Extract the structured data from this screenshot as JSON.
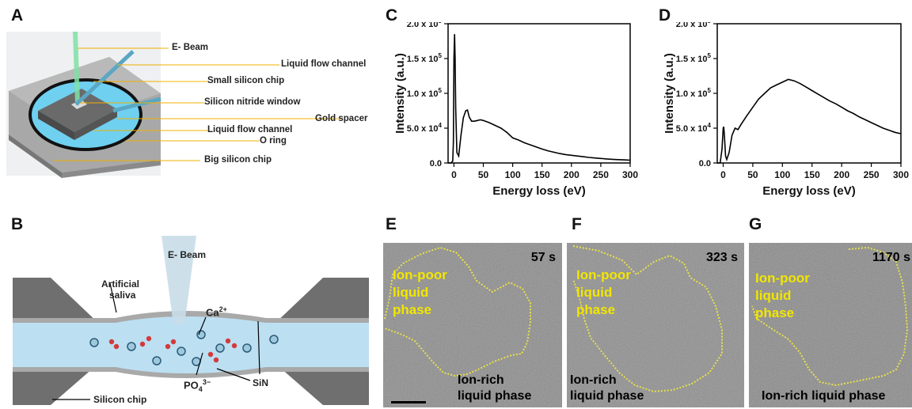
{
  "panels": {
    "A": "A",
    "B": "B",
    "C": "C",
    "D": "D",
    "E": "E",
    "F": "F",
    "G": "G"
  },
  "panelA": {
    "labels": [
      "E- Beam",
      "Liquid flow channel",
      "Small silicon chip",
      "Silicon nitride window",
      "Gold spacer",
      "Liquid flow channel",
      "O ring",
      "Big silicon chip"
    ]
  },
  "panelB": {
    "ebeam": "E- Beam",
    "artificial": "Artificial",
    "saliva": "saliva",
    "ca": "Ca",
    "ca_sup": "2+",
    "po": "PO",
    "po_sub": "4",
    "po_sup": "3−",
    "sin": "SiN",
    "silicon": "Silicon chip"
  },
  "panelE": {
    "time": "57 s",
    "poor1": "Ion-poor",
    "poor2": "liquid",
    "poor3": "phase",
    "rich1": "Ion-rich",
    "rich2": "liquid phase"
  },
  "panelF": {
    "time": "323 s",
    "poor1": "Ion-poor",
    "poor2": "liquid",
    "poor3": "phase",
    "rich1": "Ion-rich",
    "rich2": "liquid phase"
  },
  "panelG": {
    "time": "1170 s",
    "poor1": "Ion-poor",
    "poor2": "liquid",
    "poor3": "phase",
    "rich1": "Ion-rich liquid phase"
  },
  "chart_data": [
    {
      "type": "line",
      "panel": "C",
      "xlabel": "Energy loss (eV)",
      "ylabel": "Intensity (a.u.)",
      "xlim": [
        -10,
        300
      ],
      "ylim": [
        0,
        200000
      ],
      "xticks": [
        "0",
        "50",
        "100",
        "150",
        "200",
        "250",
        "300"
      ],
      "yticks": [
        "0.0",
        "5.0 x 10",
        "1.0 x 10",
        "1.5 x 10",
        "2.0 x 10"
      ],
      "ytick_exp": [
        "",
        "4",
        "5",
        "5",
        "5"
      ],
      "x": [
        -10,
        -5,
        -2,
        -1,
        0,
        1,
        2,
        3,
        5,
        8,
        12,
        16,
        20,
        23,
        26,
        30,
        35,
        40,
        45,
        50,
        60,
        70,
        80,
        90,
        100,
        110,
        120,
        130,
        140,
        150,
        160,
        170,
        180,
        190,
        200,
        210,
        220,
        230,
        240,
        250,
        260,
        270,
        280,
        290,
        300
      ],
      "y": [
        0,
        0,
        3000,
        30000,
        150000,
        185000,
        150000,
        80000,
        15000,
        10000,
        40000,
        65000,
        75000,
        76000,
        66000,
        60000,
        60000,
        61000,
        62000,
        61000,
        58000,
        54000,
        50000,
        44000,
        36000,
        33000,
        29000,
        26000,
        23000,
        20000,
        17500,
        15500,
        13500,
        12000,
        11000,
        10000,
        9000,
        8000,
        7200,
        6500,
        5800,
        5200,
        4800,
        4400,
        4000
      ]
    },
    {
      "type": "line",
      "panel": "D",
      "xlabel": "Energy loss (eV)",
      "ylabel": "Intensity (a.u.)",
      "xlim": [
        -10,
        300
      ],
      "ylim": [
        0,
        200000
      ],
      "xticks": [
        "0",
        "50",
        "100",
        "150",
        "200",
        "250",
        "300"
      ],
      "yticks": [
        "0.0",
        "5.0 x 10",
        "1.0 x 10",
        "1.5 x 10",
        "2.0 x 10"
      ],
      "ytick_exp": [
        "",
        "4",
        "5",
        "5",
        "5"
      ],
      "x": [
        -10,
        -5,
        -2,
        0,
        1,
        2,
        4,
        6,
        10,
        15,
        20,
        25,
        30,
        40,
        50,
        60,
        70,
        80,
        90,
        100,
        110,
        120,
        130,
        140,
        150,
        160,
        170,
        180,
        190,
        200,
        210,
        220,
        230,
        240,
        250,
        260,
        270,
        280,
        290,
        300
      ],
      "y": [
        0,
        0,
        20000,
        50000,
        52000,
        40000,
        10000,
        5000,
        15000,
        40000,
        50000,
        48000,
        55000,
        68000,
        80000,
        92000,
        100000,
        108000,
        112000,
        116000,
        120000,
        118000,
        114000,
        109000,
        104000,
        99000,
        94000,
        89000,
        85000,
        80000,
        75000,
        71000,
        66000,
        62000,
        58000,
        54000,
        50000,
        47000,
        44000,
        42000
      ]
    }
  ]
}
